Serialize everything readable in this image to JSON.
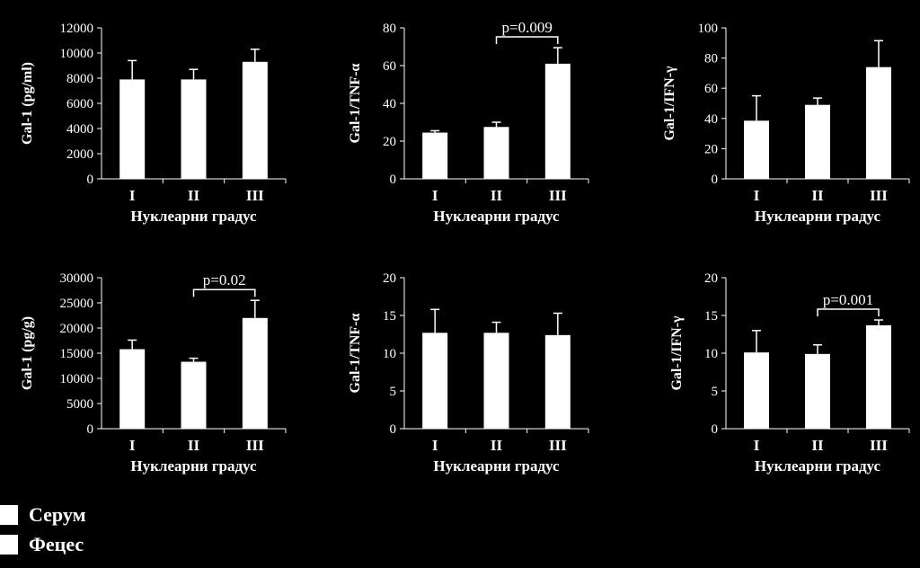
{
  "chart_data": [
    {
      "type": "bar",
      "ylabel": "Gal-1 (pg/ml)",
      "xlabel": "Нуклеарни градус",
      "categories": [
        "I",
        "II",
        "III"
      ],
      "values": [
        7900,
        7900,
        9300
      ],
      "errors": [
        1500,
        800,
        1000
      ],
      "ylim": [
        0,
        12000
      ],
      "yticks": [
        "0",
        "2000",
        "4000",
        "6000",
        "8000",
        "10000",
        "12000"
      ],
      "ytick_values": [
        0,
        2000,
        4000,
        6000,
        8000,
        10000,
        12000
      ],
      "annotation": null
    },
    {
      "type": "bar",
      "ylabel": "Gal-1/TNF-α",
      "xlabel": "Нуклеарни градус",
      "categories": [
        "I",
        "II",
        "III"
      ],
      "values": [
        24.5,
        27.5,
        61
      ],
      "errors": [
        1,
        2.5,
        8.5
      ],
      "ylim": [
        0,
        80
      ],
      "yticks": [
        "0",
        "20",
        "40",
        "60",
        "80"
      ],
      "ytick_values": [
        0,
        20,
        40,
        60,
        80
      ],
      "annotation": {
        "text": "p=0.009",
        "from": 1,
        "to": 2
      }
    },
    {
      "type": "bar",
      "ylabel": "Gal-1/IFN-γ",
      "xlabel": "Нуклеарни градус",
      "categories": [
        "I",
        "II",
        "III"
      ],
      "values": [
        38.5,
        49,
        74
      ],
      "errors": [
        16.5,
        4.5,
        17.5
      ],
      "ylim": [
        0,
        100
      ],
      "yticks": [
        "0",
        "20",
        "40",
        "60",
        "80",
        "100"
      ],
      "ytick_values": [
        0,
        20,
        40,
        60,
        80,
        100
      ],
      "annotation": null
    },
    {
      "type": "bar",
      "ylabel": "Gal-1 (pg/g)",
      "xlabel": "Нуклеарни градус",
      "categories": [
        "I",
        "II",
        "III"
      ],
      "values": [
        15800,
        13300,
        22000
      ],
      "errors": [
        1800,
        700,
        3500
      ],
      "ylim": [
        0,
        30000
      ],
      "yticks": [
        "0",
        "5000",
        "10000",
        "15000",
        "20000",
        "25000",
        "30000"
      ],
      "ytick_values": [
        0,
        5000,
        10000,
        15000,
        20000,
        25000,
        30000
      ],
      "annotation": {
        "text": "p=0.02",
        "from": 1,
        "to": 2
      }
    },
    {
      "type": "bar",
      "ylabel": "Gal-1/TNF-α",
      "xlabel": "Нуклеарни градус",
      "categories": [
        "I",
        "II",
        "III"
      ],
      "values": [
        12.7,
        12.7,
        12.4
      ],
      "errors": [
        3.1,
        1.4,
        2.9
      ],
      "ylim": [
        0,
        20
      ],
      "yticks": [
        "0",
        "5",
        "10",
        "15",
        "20"
      ],
      "ytick_values": [
        0,
        5,
        10,
        15,
        20
      ],
      "annotation": null
    },
    {
      "type": "bar",
      "ylabel": "Gal-1/IFN-γ",
      "xlabel": "Нуклеарни градус",
      "categories": [
        "I",
        "II",
        "III"
      ],
      "values": [
        10.1,
        9.9,
        13.7
      ],
      "errors": [
        2.9,
        1.2,
        0.7
      ],
      "ylim": [
        0,
        20
      ],
      "yticks": [
        "0",
        "5",
        "10",
        "15",
        "20"
      ],
      "ytick_values": [
        0,
        5,
        10,
        15,
        20
      ],
      "annotation": {
        "text": "p=0.001",
        "from": 1,
        "to": 2
      }
    }
  ],
  "legend": {
    "items": [
      {
        "label": "Серум",
        "color": "#ffffff"
      },
      {
        "label": "Фецес",
        "color": "#ffffff"
      }
    ]
  },
  "colors": {
    "background": "#000000",
    "foreground": "#ffffff"
  }
}
